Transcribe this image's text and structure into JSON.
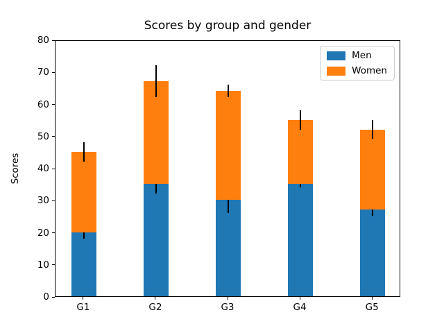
{
  "chart_data": {
    "type": "bar",
    "stacked": true,
    "title": "Scores by group and gender",
    "xlabel": "",
    "ylabel": "Scores",
    "categories": [
      "G1",
      "G2",
      "G3",
      "G4",
      "G5"
    ],
    "series": [
      {
        "name": "Men",
        "color": "#1f77b4",
        "values": [
          20,
          35,
          30,
          35,
          27
        ],
        "yerr": [
          2,
          3,
          4,
          1,
          2
        ]
      },
      {
        "name": "Women",
        "color": "#ff7f0e",
        "values": [
          25,
          32,
          34,
          20,
          25
        ],
        "yerr": [
          3,
          5,
          2,
          3,
          3
        ]
      }
    ],
    "stacked_totals": [
      45,
      67,
      64,
      55,
      52
    ],
    "ylim": [
      0,
      80
    ],
    "ytick_step": 10,
    "ytick_labels": [
      "0",
      "10",
      "20",
      "30",
      "40",
      "50",
      "60",
      "70",
      "80"
    ],
    "error_bar_color": "#000000",
    "legend_position": "upper right",
    "grid": false,
    "background_color": "#ffffff"
  }
}
